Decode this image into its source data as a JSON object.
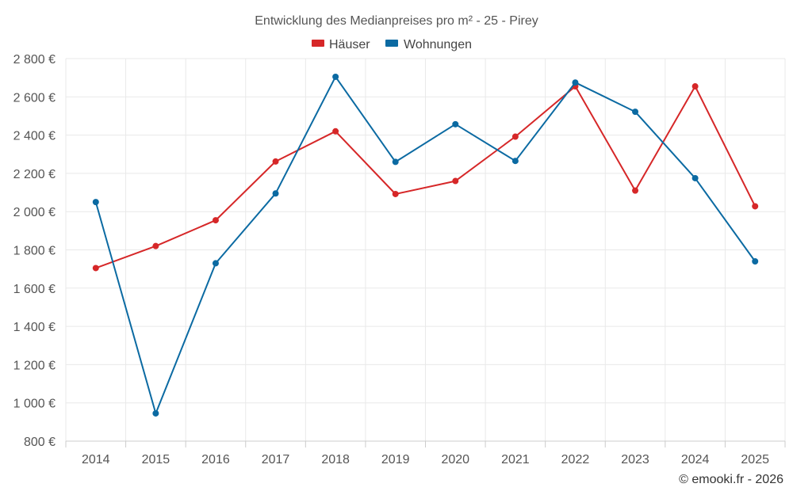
{
  "chart_data": {
    "type": "line",
    "title": "Entwicklung des Medianpreises pro m² - 25 - Pirey",
    "categories": [
      "2014",
      "2015",
      "2016",
      "2017",
      "2018",
      "2019",
      "2020",
      "2021",
      "2022",
      "2023",
      "2024",
      "2025"
    ],
    "series": [
      {
        "name": "Häuser",
        "color": "#d62728",
        "values": [
          1705,
          1820,
          1955,
          2262,
          2420,
          2092,
          2160,
          2392,
          2655,
          2110,
          2655,
          2028
        ]
      },
      {
        "name": "Wohnungen",
        "color": "#0b6aa2",
        "values": [
          2050,
          945,
          1730,
          2095,
          2705,
          2260,
          2457,
          2265,
          2675,
          2522,
          2175,
          1740
        ]
      }
    ],
    "ylim": [
      800,
      2800
    ],
    "yticks": [
      800,
      1000,
      1200,
      1400,
      1600,
      1800,
      2000,
      2200,
      2400,
      2600,
      2800
    ],
    "ytick_labels": [
      "800 €",
      "1 000 €",
      "1 200 €",
      "1 400 €",
      "1 600 €",
      "1 800 €",
      "2 000 €",
      "2 200 €",
      "2 400 €",
      "2 600 €",
      "2 800 €"
    ],
    "xlabel": "",
    "ylabel": "",
    "grid": true,
    "legend_position": "top-center"
  },
  "credit": "© emooki.fr - 2026"
}
